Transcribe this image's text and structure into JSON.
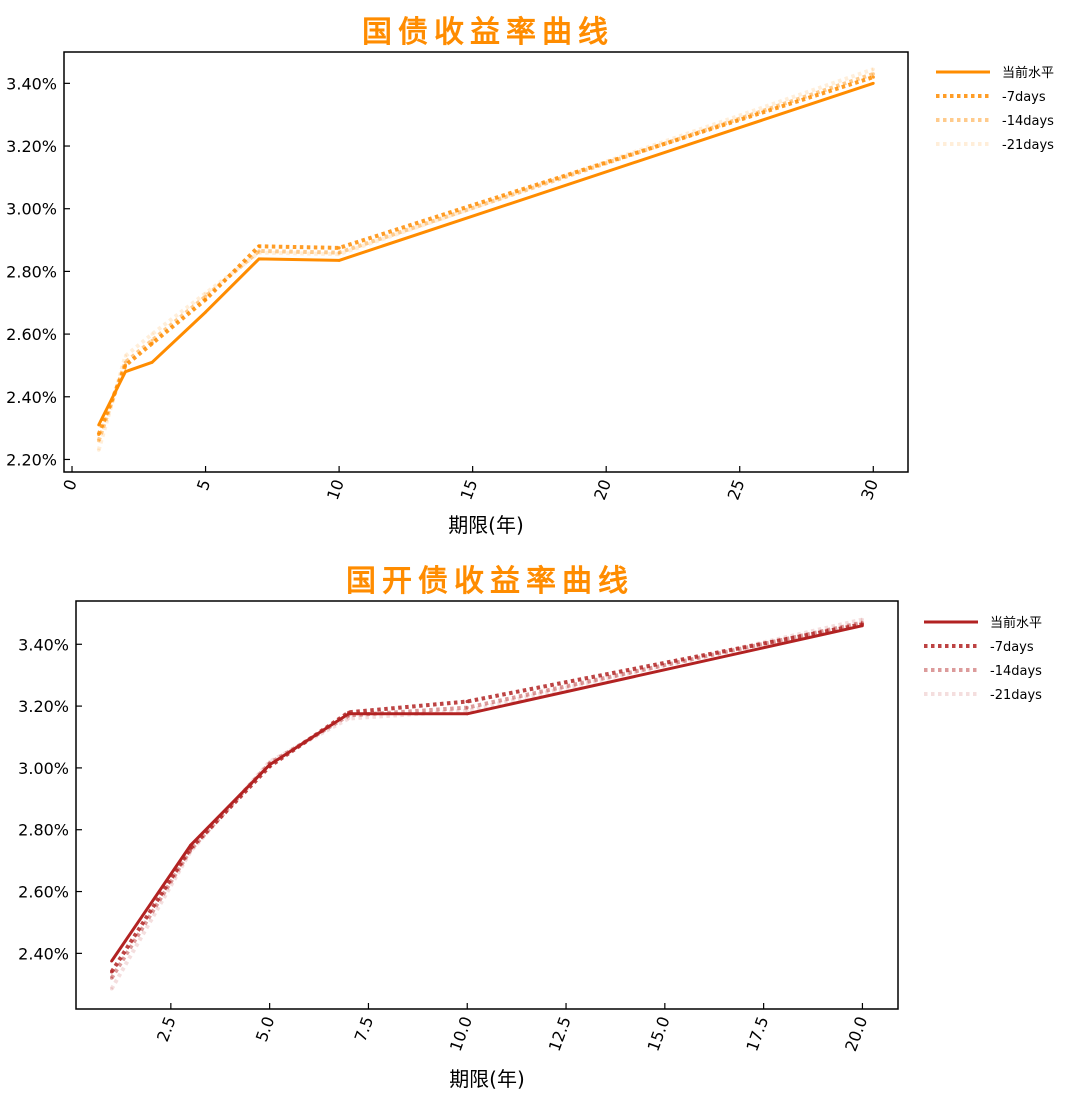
{
  "chart_data": [
    {
      "type": "line",
      "title": "国债收益率曲线",
      "title_color": "#FF8C00",
      "xlabel": "期限(年)",
      "ylabel": "",
      "xlim": [
        -0.3,
        31.3
      ],
      "ylim": [
        2.16,
        3.5
      ],
      "x_ticks": [
        0,
        5,
        10,
        15,
        20,
        25,
        30
      ],
      "x_tick_labels": [
        "0",
        "5",
        "10",
        "15",
        "20",
        "25",
        "30"
      ],
      "y_ticks": [
        2.2,
        2.4,
        2.6,
        2.8,
        3.0,
        3.2,
        3.4
      ],
      "y_tick_labels": [
        "2.20%",
        "2.40%",
        "2.60%",
        "2.80%",
        "3.00%",
        "3.20%",
        "3.40%"
      ],
      "legend_position": "outside-top-right",
      "color": "#FF8C00",
      "x": [
        1,
        2,
        3,
        5,
        7,
        10,
        30
      ],
      "series": [
        {
          "name": "当前水平",
          "style": "solid",
          "opacity": 1.0,
          "values": [
            2.31,
            2.48,
            2.51,
            2.67,
            2.84,
            2.835,
            3.4
          ]
        },
        {
          "name": "-7days",
          "style": "dotted",
          "opacity": 0.85,
          "values": [
            2.28,
            2.5,
            2.57,
            2.71,
            2.88,
            2.875,
            3.42
          ]
        },
        {
          "name": "-14days",
          "style": "dotted",
          "opacity": 0.45,
          "values": [
            2.26,
            2.51,
            2.58,
            2.72,
            2.865,
            2.86,
            3.43
          ]
        },
        {
          "name": "-21days",
          "style": "dotted",
          "opacity": 0.15,
          "values": [
            2.23,
            2.53,
            2.6,
            2.73,
            2.86,
            2.855,
            3.445
          ]
        }
      ]
    },
    {
      "type": "line",
      "title": "国开债收益率曲线",
      "title_color": "#FF8C00",
      "xlabel": "期限(年)",
      "ylabel": "",
      "xlim": [
        0.1,
        20.9
      ],
      "ylim": [
        2.22,
        3.54
      ],
      "x_ticks": [
        2.5,
        5.0,
        7.5,
        10.0,
        12.5,
        15.0,
        17.5,
        20.0
      ],
      "x_tick_labels": [
        "2.5",
        "5.0",
        "7.5",
        "10.0",
        "12.5",
        "15.0",
        "17.5",
        "20.0"
      ],
      "y_ticks": [
        2.4,
        2.6,
        2.8,
        3.0,
        3.2,
        3.4
      ],
      "y_tick_labels": [
        "2.40%",
        "2.60%",
        "2.80%",
        "3.00%",
        "3.20%",
        "3.40%"
      ],
      "legend_position": "outside-top-right",
      "color": "#B22222",
      "x": [
        1,
        3,
        5,
        7,
        10,
        20
      ],
      "series": [
        {
          "name": "当前水平",
          "style": "solid",
          "opacity": 1.0,
          "values": [
            2.375,
            2.75,
            3.01,
            3.175,
            3.175,
            3.46
          ]
        },
        {
          "name": "-7days",
          "style": "dotted",
          "opacity": 0.85,
          "values": [
            2.34,
            2.74,
            3.005,
            3.18,
            3.215,
            3.465
          ]
        },
        {
          "name": "-14days",
          "style": "dotted",
          "opacity": 0.45,
          "values": [
            2.32,
            2.735,
            3.015,
            3.17,
            3.195,
            3.47
          ]
        },
        {
          "name": "-21days",
          "style": "dotted",
          "opacity": 0.15,
          "values": [
            2.285,
            2.73,
            3.02,
            3.16,
            3.185,
            3.48
          ]
        }
      ]
    }
  ]
}
